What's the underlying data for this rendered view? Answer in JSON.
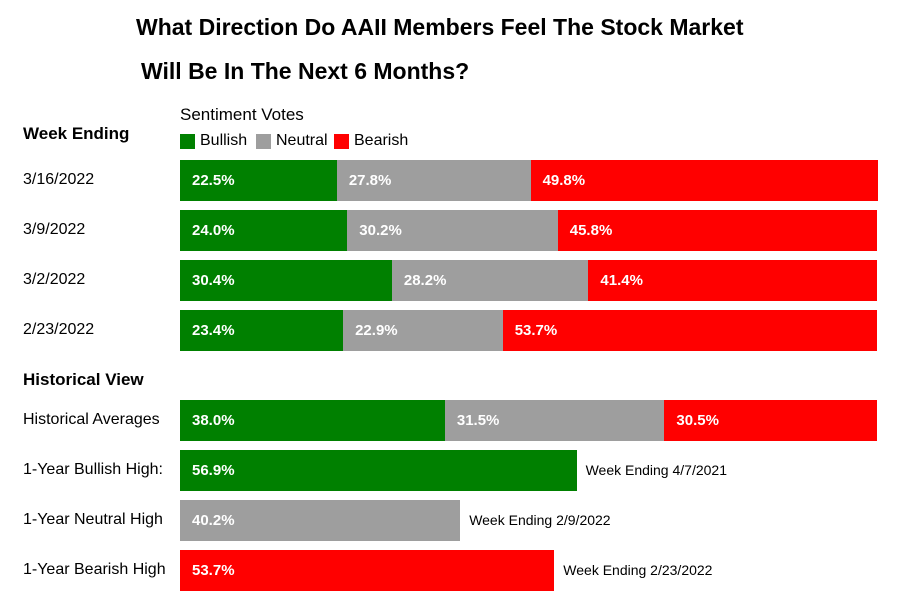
{
  "title_line1": "What Direction Do AAII Members Feel The Stock Market",
  "title_line2": "Will Be In The Next 6 Months?",
  "week_header": "Week Ending",
  "historical_header": "Historical View",
  "sentiment_label": "Sentiment Votes",
  "colors": {
    "bullish": "#008000",
    "neutral": "#9e9e9e",
    "bearish": "#ff0000"
  },
  "chart_data": {
    "type": "bar",
    "stacked": true,
    "orientation": "horizontal",
    "legend": [
      "Bullish",
      "Neutral",
      "Bearish"
    ],
    "weekly": [
      {
        "label": "3/16/2022",
        "bullish": 22.5,
        "neutral": 27.8,
        "bearish": 49.8,
        "bullish_text": "22.5%",
        "neutral_text": "27.8%",
        "bearish_text": "49.8%"
      },
      {
        "label": "3/9/2022",
        "bullish": 24.0,
        "neutral": 30.2,
        "bearish": 45.8,
        "bullish_text": "24.0%",
        "neutral_text": "30.2%",
        "bearish_text": "45.8%"
      },
      {
        "label": "3/2/2022",
        "bullish": 30.4,
        "neutral": 28.2,
        "bearish": 41.4,
        "bullish_text": "30.4%",
        "neutral_text": "28.2%",
        "bearish_text": "41.4%"
      },
      {
        "label": "2/23/2022",
        "bullish": 23.4,
        "neutral": 22.9,
        "bearish": 53.7,
        "bullish_text": "23.4%",
        "neutral_text": "22.9%",
        "bearish_text": "53.7%"
      }
    ],
    "historical_averages": {
      "label": "Historical Averages",
      "bullish": 38.0,
      "neutral": 31.5,
      "bearish": 30.5,
      "bullish_text": "38.0%",
      "neutral_text": "31.5%",
      "bearish_text": "30.5%"
    },
    "highs": [
      {
        "label": "1-Year Bullish High:",
        "type": "bullish",
        "value": 56.9,
        "value_text": "56.9%",
        "note": "Week Ending 4/7/2021"
      },
      {
        "label": "1-Year Neutral High",
        "type": "neutral",
        "value": 40.2,
        "value_text": "40.2%",
        "note": "Week Ending 2/9/2022"
      },
      {
        "label": "1-Year Bearish High",
        "type": "bearish",
        "value": 53.7,
        "value_text": "53.7%",
        "note": "Week Ending 2/23/2022"
      }
    ]
  }
}
